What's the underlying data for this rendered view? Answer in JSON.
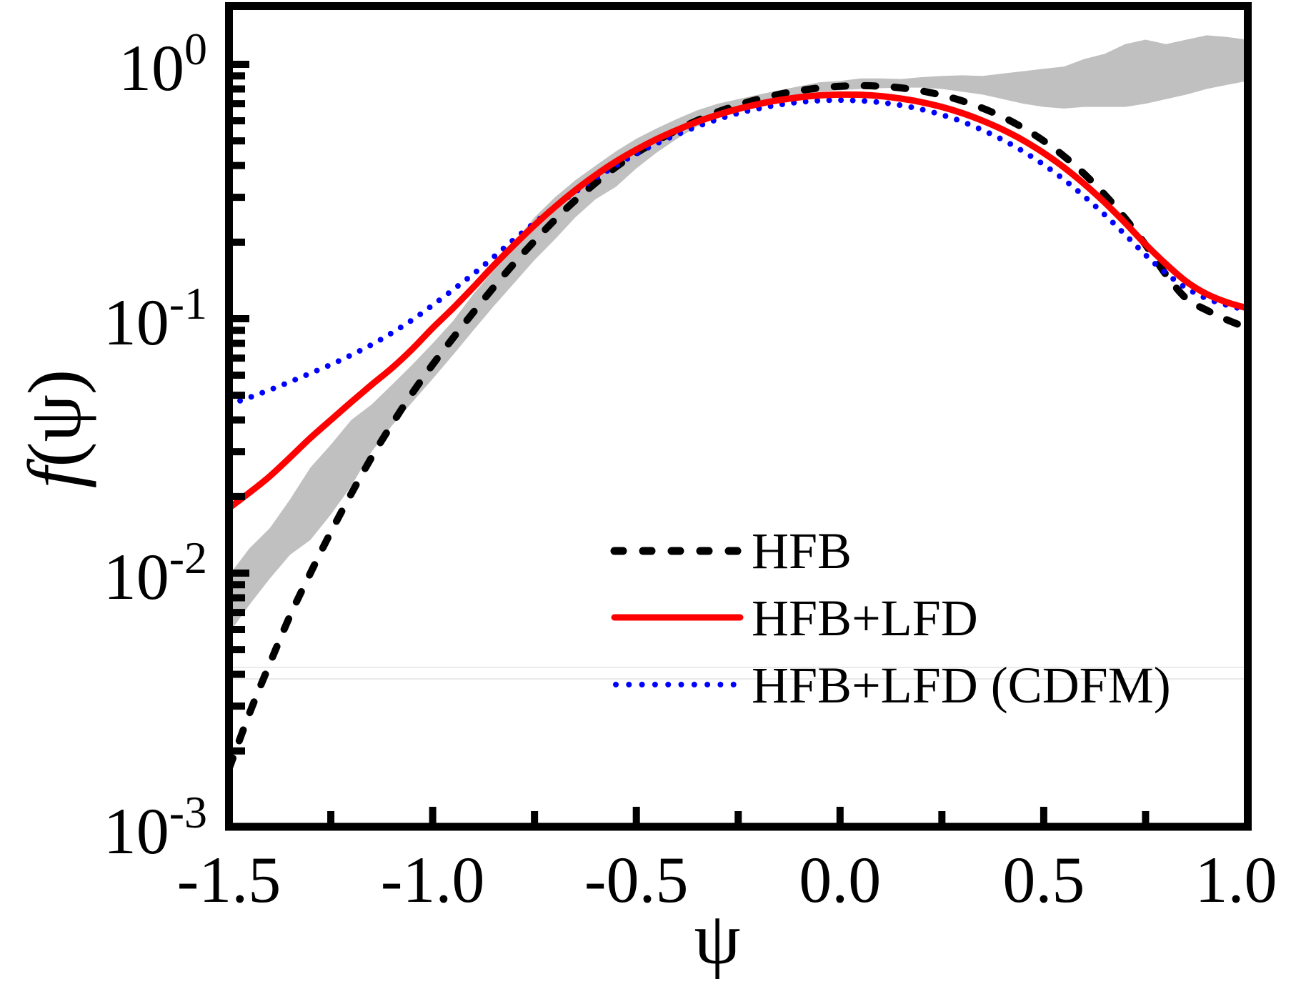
{
  "chart_data": {
    "type": "line",
    "title": "",
    "xlabel": "ψ",
    "ylabel_italic": "f",
    "ylabel_rest": "(ψ)",
    "xlim": [
      -1.5,
      1.0
    ],
    "ylim": [
      0.001,
      1.7
    ],
    "yscale": "log",
    "grid": false,
    "legend_position": "bottom-right",
    "x_ticks": [
      {
        "value": -1.5,
        "label": "-1.5"
      },
      {
        "value": -1.0,
        "label": "-1.0"
      },
      {
        "value": -0.5,
        "label": "-0.5"
      },
      {
        "value": 0.0,
        "label": "0.0"
      },
      {
        "value": 0.5,
        "label": "0.5"
      },
      {
        "value": 1.0,
        "label": "1.0"
      }
    ],
    "x_minor_ticks": [
      -1.25,
      -0.75,
      -0.25,
      0.25,
      0.75
    ],
    "y_ticks": [
      {
        "value": 1,
        "base": "10",
        "exp": "0"
      },
      {
        "value": 0.1,
        "base": "10",
        "exp": "-1"
      },
      {
        "value": 0.01,
        "base": "10",
        "exp": "-2"
      },
      {
        "value": 0.001,
        "base": "10",
        "exp": "-3"
      }
    ],
    "band": {
      "name": "data band",
      "color": "#c0c0c0",
      "x": [
        -1.5,
        -1.45,
        -1.4,
        -1.35,
        -1.3,
        -1.25,
        -1.2,
        -1.15,
        -1.1,
        -1.05,
        -1.0,
        -0.95,
        -0.9,
        -0.85,
        -0.8,
        -0.75,
        -0.7,
        -0.65,
        -0.6,
        -0.55,
        -0.5,
        -0.45,
        -0.4,
        -0.35,
        -0.3,
        -0.25,
        -0.2,
        -0.15,
        -0.1,
        -0.05,
        0.0,
        0.05,
        0.1,
        0.15,
        0.2,
        0.25,
        0.3,
        0.35,
        0.4,
        0.45,
        0.5,
        0.55,
        0.6,
        0.65,
        0.7,
        0.75,
        0.8,
        0.85,
        0.9,
        0.95,
        1.0
      ],
      "upper": [
        0.0098,
        0.0125,
        0.015,
        0.0195,
        0.026,
        0.032,
        0.04,
        0.046,
        0.055,
        0.066,
        0.08,
        0.098,
        0.125,
        0.155,
        0.2,
        0.25,
        0.3,
        0.35,
        0.4,
        0.455,
        0.51,
        0.56,
        0.61,
        0.66,
        0.7,
        0.73,
        0.76,
        0.79,
        0.82,
        0.85,
        0.86,
        0.88,
        0.88,
        0.875,
        0.89,
        0.9,
        0.905,
        0.9,
        0.92,
        0.94,
        0.96,
        0.98,
        1.05,
        1.1,
        1.2,
        1.25,
        1.2,
        1.25,
        1.3,
        1.28,
        1.25
      ],
      "lower": [
        0.0058,
        0.0075,
        0.0095,
        0.0118,
        0.0135,
        0.017,
        0.022,
        0.03,
        0.038,
        0.047,
        0.058,
        0.072,
        0.09,
        0.112,
        0.138,
        0.17,
        0.205,
        0.25,
        0.295,
        0.33,
        0.39,
        0.45,
        0.51,
        0.57,
        0.62,
        0.67,
        0.71,
        0.74,
        0.76,
        0.78,
        0.79,
        0.8,
        0.805,
        0.81,
        0.81,
        0.8,
        0.78,
        0.76,
        0.73,
        0.7,
        0.68,
        0.67,
        0.68,
        0.68,
        0.68,
        0.7,
        0.73,
        0.76,
        0.8,
        0.83,
        0.86
      ]
    },
    "x": [
      -1.5,
      -1.45,
      -1.4,
      -1.35,
      -1.3,
      -1.25,
      -1.2,
      -1.15,
      -1.1,
      -1.05,
      -1.0,
      -0.95,
      -0.9,
      -0.85,
      -0.8,
      -0.75,
      -0.7,
      -0.65,
      -0.6,
      -0.55,
      -0.5,
      -0.45,
      -0.4,
      -0.35,
      -0.3,
      -0.25,
      -0.2,
      -0.15,
      -0.1,
      -0.05,
      0.0,
      0.05,
      0.1,
      0.15,
      0.2,
      0.25,
      0.3,
      0.35,
      0.4,
      0.45,
      0.5,
      0.55,
      0.6,
      0.65,
      0.7,
      0.75,
      0.8,
      0.85,
      0.9,
      0.95,
      1.0
    ],
    "series": [
      {
        "name": "HFB",
        "label": "HFB",
        "color": "#000000",
        "style": "dashed",
        "values": [
          0.0017,
          0.0028,
          0.0044,
          0.0068,
          0.01,
          0.0145,
          0.0205,
          0.0285,
          0.0385,
          0.051,
          0.066,
          0.084,
          0.106,
          0.133,
          0.165,
          0.202,
          0.245,
          0.292,
          0.342,
          0.395,
          0.448,
          0.5,
          0.552,
          0.602,
          0.65,
          0.692,
          0.73,
          0.762,
          0.788,
          0.808,
          0.82,
          0.824,
          0.82,
          0.808,
          0.786,
          0.756,
          0.718,
          0.672,
          0.62,
          0.562,
          0.5,
          0.435,
          0.37,
          0.307,
          0.248,
          0.195,
          0.149,
          0.12,
          0.108,
          0.099,
          0.092
        ]
      },
      {
        "name": "HFB+LFD",
        "label": "HFB+LFD",
        "color": "#ff0000",
        "style": "solid",
        "values": [
          0.018,
          0.0207,
          0.024,
          0.0285,
          0.034,
          0.04,
          0.047,
          0.055,
          0.064,
          0.076,
          0.092,
          0.11,
          0.133,
          0.162,
          0.195,
          0.233,
          0.275,
          0.32,
          0.367,
          0.415,
          0.462,
          0.508,
          0.552,
          0.595,
          0.633,
          0.668,
          0.698,
          0.723,
          0.742,
          0.755,
          0.76,
          0.759,
          0.75,
          0.733,
          0.71,
          0.68,
          0.643,
          0.6,
          0.553,
          0.502,
          0.448,
          0.393,
          0.338,
          0.286,
          0.238,
          0.196,
          0.164,
          0.14,
          0.125,
          0.116,
          0.11
        ]
      },
      {
        "name": "HFB+LFD (CDFM)",
        "label": "HFB+LFD (CDFM)",
        "color": "#0000ff",
        "style": "dotted",
        "values": [
          0.046,
          0.049,
          0.0525,
          0.0565,
          0.061,
          0.066,
          0.072,
          0.079,
          0.088,
          0.099,
          0.113,
          0.13,
          0.15,
          0.175,
          0.205,
          0.238,
          0.275,
          0.315,
          0.357,
          0.4,
          0.445,
          0.488,
          0.53,
          0.57,
          0.608,
          0.642,
          0.67,
          0.693,
          0.71,
          0.72,
          0.723,
          0.719,
          0.708,
          0.69,
          0.665,
          0.633,
          0.595,
          0.551,
          0.504,
          0.454,
          0.403,
          0.352,
          0.302,
          0.256,
          0.214,
          0.178,
          0.151,
          0.132,
          0.12,
          0.113,
          0.108
        ]
      }
    ]
  }
}
